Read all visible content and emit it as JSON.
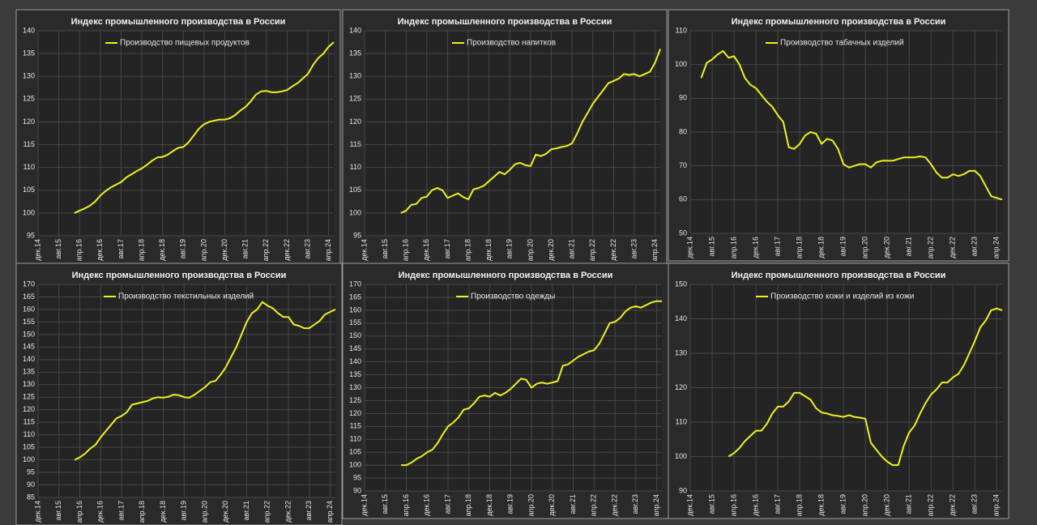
{
  "chart_data": [
    {
      "type": "line",
      "title": "Индекс промышленного производства в России",
      "grid": true,
      "categories": [
        "дек.14",
        null,
        null,
        null,
        "авг.15",
        null,
        null,
        null,
        "апр.16",
        null,
        null,
        null,
        "дек.16",
        null,
        null,
        null,
        "авг.17",
        null,
        null,
        null,
        "апр.18",
        null,
        null,
        null,
        "дек.18",
        null,
        null,
        null,
        "авг.19",
        null,
        null,
        null,
        "апр.20",
        null,
        null,
        null,
        "дек.20",
        null,
        null,
        null,
        "авг.21",
        null,
        null,
        null,
        "апр.22",
        null,
        null,
        null,
        "дек.22",
        null,
        null,
        null,
        "авг.23",
        null,
        null,
        null,
        "апр.24",
        null
      ],
      "ylim": [
        95,
        140
      ],
      "yticks": [
        95,
        100,
        105,
        110,
        115,
        120,
        125,
        130,
        135,
        140
      ],
      "series": [
        {
          "name": "Производство пищевых продуктов",
          "color": "#f0f020",
          "values": [
            null,
            null,
            null,
            null,
            null,
            null,
            null,
            100,
            100.5,
            101,
            101.6,
            102.5,
            103.8,
            104.8,
            105.6,
            106.2,
            106.8,
            107.8,
            108.5,
            109.2,
            109.8,
            110.6,
            111.5,
            112.2,
            112.3,
            112.8,
            113.6,
            114.3,
            114.5,
            115.5,
            117,
            118.5,
            119.5,
            120,
            120.3,
            120.5,
            120.5,
            120.8,
            121.5,
            122.5,
            123.3,
            124.5,
            126,
            126.7,
            126.8,
            126.5,
            126.5,
            126.7,
            127,
            127.8,
            128.5,
            129.5,
            130.5,
            132.5,
            134,
            135,
            136.5,
            137.5
          ]
        }
      ]
    },
    {
      "type": "line",
      "title": "Индекс промышленного производства в России",
      "grid": true,
      "categories": [
        "дек.14",
        null,
        null,
        null,
        "авг.15",
        null,
        null,
        null,
        "апр.16",
        null,
        null,
        null,
        "дек.16",
        null,
        null,
        null,
        "авг.17",
        null,
        null,
        null,
        "апр.18",
        null,
        null,
        null,
        "дек.18",
        null,
        null,
        null,
        "авг.19",
        null,
        null,
        null,
        "апр.20",
        null,
        null,
        null,
        "дек.20",
        null,
        null,
        null,
        "авг.21",
        null,
        null,
        null,
        "апр.22",
        null,
        null,
        null,
        "дек.22",
        null,
        null,
        null,
        "авг.23",
        null,
        null,
        null,
        "апр.24",
        null
      ],
      "ylim": [
        95,
        140
      ],
      "yticks": [
        95,
        100,
        105,
        110,
        115,
        120,
        125,
        130,
        135,
        140
      ],
      "series": [
        {
          "name": "Производство напитков",
          "color": "#f0f020",
          "values": [
            null,
            null,
            null,
            null,
            null,
            null,
            null,
            100,
            100.5,
            101.8,
            102,
            103.3,
            103.6,
            105,
            105.5,
            105,
            103.3,
            103.8,
            104.3,
            103.5,
            103,
            105.2,
            105.5,
            106,
            107,
            108,
            109,
            108.5,
            109.5,
            110.7,
            111,
            110.5,
            110.3,
            112.8,
            112.5,
            113,
            114,
            114.2,
            114.5,
            114.7,
            115.3,
            117.5,
            120,
            122,
            124,
            125.5,
            127,
            128.5,
            129,
            129.5,
            130.5,
            130.3,
            130.5,
            130,
            130.5,
            131,
            133,
            136
          ]
        }
      ]
    },
    {
      "type": "line",
      "title": "Индекс промышленного производства в России",
      "grid": true,
      "categories": [
        "дек.14",
        null,
        null,
        null,
        "авг.15",
        null,
        null,
        null,
        "апр.16",
        null,
        null,
        null,
        "дек.16",
        null,
        null,
        null,
        "авг.17",
        null,
        null,
        null,
        "апр.18",
        null,
        null,
        null,
        "дек.18",
        null,
        null,
        null,
        "авг.19",
        null,
        null,
        null,
        "апр.20",
        null,
        null,
        null,
        "дек.20",
        null,
        null,
        null,
        "авг.21",
        null,
        null,
        null,
        "апр.22",
        null,
        null,
        null,
        "дек.22",
        null,
        null,
        null,
        "авг.23",
        null,
        null,
        null,
        "апр.24",
        null
      ],
      "ylim": [
        50,
        110
      ],
      "yticks": [
        50,
        60,
        70,
        80,
        90,
        100,
        110
      ],
      "series": [
        {
          "name": "Производство табачных изделий",
          "color": "#f0f020",
          "values": [
            null,
            null,
            96,
            100.5,
            101.5,
            103,
            104,
            102,
            102.5,
            100,
            96,
            94,
            93,
            91,
            89,
            87.5,
            85,
            83,
            75.5,
            75,
            76.5,
            79,
            80,
            79.5,
            76.5,
            78,
            77.5,
            75,
            70.5,
            69.5,
            70,
            70.5,
            70.5,
            69.5,
            71,
            71.5,
            71.5,
            71.5,
            72,
            72.5,
            72.5,
            72.5,
            72.8,
            72.5,
            70.5,
            68,
            66.5,
            66.5,
            67.5,
            67,
            67.5,
            68.5,
            68.5,
            67,
            64,
            61,
            60.5,
            60
          ]
        }
      ]
    },
    {
      "type": "line",
      "title": "Индекс промышленного производства в России",
      "grid": true,
      "categories": [
        "дек.14",
        null,
        null,
        null,
        "авг.15",
        null,
        null,
        null,
        "апр.16",
        null,
        null,
        null,
        "дек.16",
        null,
        null,
        null,
        "авг.17",
        null,
        null,
        null,
        "апр.18",
        null,
        null,
        null,
        "дек.18",
        null,
        null,
        null,
        "авг.19",
        null,
        null,
        null,
        "апр.20",
        null,
        null,
        null,
        "дек.20",
        null,
        null,
        null,
        "авг.21",
        null,
        null,
        null,
        "апр.22",
        null,
        null,
        null,
        "дек.22",
        null,
        null,
        null,
        "авг.23",
        null,
        null,
        null,
        "апр.24",
        null
      ],
      "ylim": [
        85,
        170
      ],
      "yticks": [
        85,
        90,
        95,
        100,
        105,
        110,
        115,
        120,
        125,
        130,
        135,
        140,
        145,
        150,
        155,
        160,
        165,
        170
      ],
      "series": [
        {
          "name": "Производство текстильных изделий",
          "color": "#f0f020",
          "values": [
            null,
            null,
            null,
            null,
            null,
            null,
            null,
            100,
            101,
            102.5,
            104.5,
            106,
            109,
            111.5,
            114,
            116.5,
            117.5,
            119,
            122,
            122.5,
            123,
            123.5,
            124.5,
            125,
            124.8,
            125.2,
            126,
            125.8,
            125,
            124.8,
            126,
            127.5,
            129,
            131,
            131.5,
            134,
            137,
            141,
            145,
            150,
            155,
            158.5,
            160,
            163,
            161.5,
            160.5,
            158.5,
            157,
            157,
            154,
            153.5,
            152.5,
            152.5,
            154,
            155.5,
            158,
            159,
            160
          ]
        }
      ]
    },
    {
      "type": "line",
      "title": "Индекс промышленного производства в России",
      "grid": true,
      "categories": [
        "дек.14",
        null,
        null,
        null,
        "авг.15",
        null,
        null,
        null,
        "апр.16",
        null,
        null,
        null,
        "дек.16",
        null,
        null,
        null,
        "авг.17",
        null,
        null,
        null,
        "апр.18",
        null,
        null,
        null,
        "дек.18",
        null,
        null,
        null,
        "авг.19",
        null,
        null,
        null,
        "апр.20",
        null,
        null,
        null,
        "дек.20",
        null,
        null,
        null,
        "авг.21",
        null,
        null,
        null,
        "апр.22",
        null,
        null,
        null,
        "дек.22",
        null,
        null,
        null,
        "авг.23",
        null,
        null,
        null,
        "апр.24",
        null
      ],
      "ylim": [
        90,
        170
      ],
      "yticks": [
        90,
        95,
        100,
        105,
        110,
        115,
        120,
        125,
        130,
        135,
        140,
        145,
        150,
        155,
        160,
        165,
        170
      ],
      "series": [
        {
          "name": "Производство одежды",
          "color": "#f0f020",
          "values": [
            null,
            null,
            null,
            null,
            null,
            null,
            null,
            100,
            100,
            101,
            102.5,
            103.5,
            105,
            106,
            108.5,
            112,
            115,
            116.5,
            118.5,
            121.5,
            122,
            124,
            126.5,
            127,
            126.5,
            128,
            127,
            128,
            129.5,
            131.5,
            133.5,
            133,
            130,
            131.5,
            132,
            131.5,
            132,
            132.5,
            138.5,
            139,
            140.5,
            142,
            143,
            144,
            144.5,
            147,
            151,
            155,
            155.5,
            157,
            159.5,
            161,
            161.5,
            161,
            162,
            163,
            163.5,
            163.5
          ]
        }
      ]
    },
    {
      "type": "line",
      "title": "Индекс промышленного производства в России",
      "grid": true,
      "categories": [
        "дек.14",
        null,
        null,
        null,
        "авг.15",
        null,
        null,
        null,
        "апр.16",
        null,
        null,
        null,
        "дек.16",
        null,
        null,
        null,
        "авг.17",
        null,
        null,
        null,
        "апр.18",
        null,
        null,
        null,
        "дек.18",
        null,
        null,
        null,
        "авг.19",
        null,
        null,
        null,
        "апр.20",
        null,
        null,
        null,
        "дек.20",
        null,
        null,
        null,
        "авг.21",
        null,
        null,
        null,
        "апр.22",
        null,
        null,
        null,
        "дек.22",
        null,
        null,
        null,
        "авг.23",
        null,
        null,
        null,
        "апр.24",
        null
      ],
      "ylim": [
        90,
        150
      ],
      "yticks": [
        90,
        100,
        110,
        120,
        130,
        140,
        150
      ],
      "series": [
        {
          "name": "Производство кожи и изделий из кожи",
          "color": "#f0f020",
          "values": [
            null,
            null,
            null,
            null,
            null,
            null,
            null,
            100,
            101,
            102.5,
            104.5,
            106,
            107.5,
            107.5,
            109.5,
            112.5,
            114.5,
            114.5,
            116,
            118.5,
            118.5,
            117.5,
            116.5,
            114,
            112.8,
            112.5,
            112,
            111.8,
            111.5,
            112,
            111.5,
            111.3,
            111,
            104,
            102,
            100,
            98.5,
            97.5,
            97.5,
            103,
            107,
            109,
            112.5,
            115.5,
            118,
            119.5,
            121.5,
            121.5,
            123,
            124,
            126.5,
            130,
            133.5,
            137.5,
            139.5,
            142.5,
            143,
            142.5
          ]
        }
      ]
    }
  ]
}
